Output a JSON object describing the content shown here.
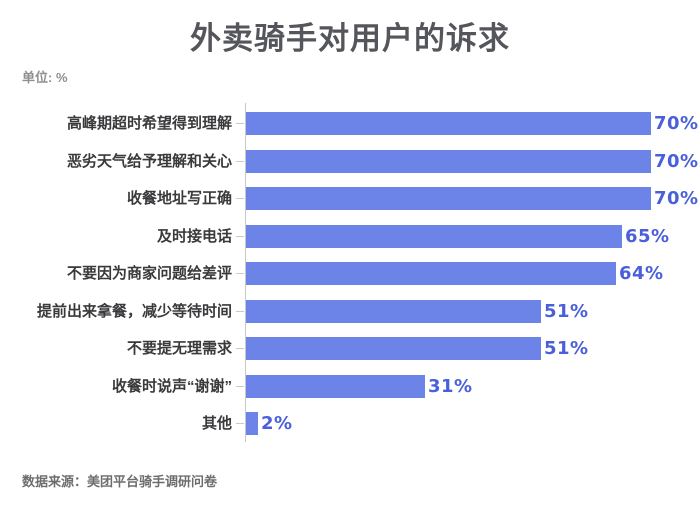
{
  "header": {
    "title": "外卖骑手对用户的诉求",
    "unit_label": "单位: %"
  },
  "footer": {
    "source": "数据来源：美团平台骑手调研问卷"
  },
  "colors": {
    "background": "#ffffff",
    "title_text": "#55565b",
    "unit_text": "#8f8f90",
    "source_text": "#6e6e70",
    "category_text": "#3a3a3c",
    "bar": "#6c83e8",
    "value_text": "#4a5fd9",
    "axis": "#c8c8c8"
  },
  "chart_data": {
    "type": "bar",
    "orientation": "horizontal",
    "title": "外卖骑手对用户的诉求",
    "unit": "%",
    "xlabel": "",
    "ylabel": "",
    "grid": false,
    "legend": "none",
    "xlim": [
      0,
      77.8
    ],
    "categories": [
      "高峰期超时希望得到理解",
      "恶劣天气给予理解和关心",
      "收餐地址写正确",
      "及时接电话",
      "不要因为商家问题给差评",
      "提前出来拿餐，减少等待时间",
      "不要提无理需求",
      "收餐时说声“谢谢”",
      "其他"
    ],
    "values": [
      70,
      70,
      70,
      65,
      64,
      51,
      51,
      31,
      2
    ],
    "data_labels": [
      "70%",
      "70%",
      "70%",
      "65%",
      "64%",
      "51%",
      "51%",
      "31%",
      "2%"
    ]
  }
}
